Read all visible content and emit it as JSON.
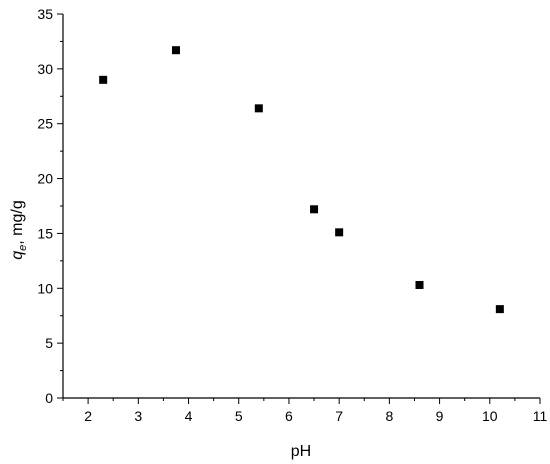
{
  "chart_data": {
    "type": "scatter",
    "title": "",
    "xlabel": "pH",
    "ylabel_italic": "q",
    "ylabel_subscript": "e",
    "ylabel_suffix": ", mg/g",
    "xlim": [
      1.5,
      11
    ],
    "ylim": [
      0,
      35
    ],
    "x_ticks": [
      2,
      3,
      4,
      5,
      6,
      7,
      8,
      9,
      10,
      11
    ],
    "y_ticks": [
      0,
      5,
      10,
      15,
      20,
      25,
      30,
      35
    ],
    "x_minor_step": 0.5,
    "y_minor_step": 2.5,
    "grid": false,
    "marker": "square",
    "marker_color": "#000000",
    "series": [
      {
        "x": [
          2.3,
          3.75,
          5.4,
          6.5,
          7.0,
          8.6,
          10.2
        ],
        "y": [
          29.0,
          31.7,
          26.4,
          17.2,
          15.1,
          10.3,
          8.1
        ]
      }
    ]
  }
}
